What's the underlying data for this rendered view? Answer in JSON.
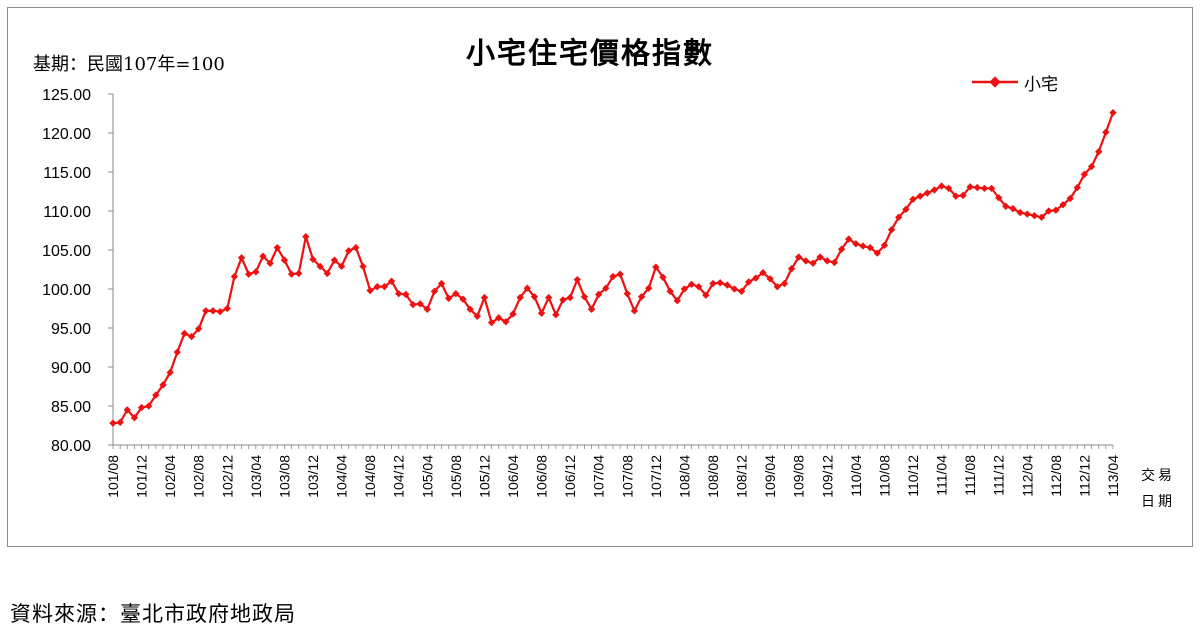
{
  "page": {
    "title": "小宅住宅價格指數",
    "base_note": "基期：民國107年=100",
    "source_note": "資料來源：臺北市政府地政局",
    "x_unit_line1": "交易",
    "x_unit_line2": "日期"
  },
  "colors": {
    "series": "#ee1111",
    "axis": "#888888",
    "frame": "#8c8c8c"
  },
  "chart_data": {
    "type": "line",
    "title": "小宅住宅價格指數",
    "xlabel": "交易日期",
    "ylabel": "",
    "ylim": [
      80,
      125
    ],
    "yticks": [
      80,
      85,
      90,
      95,
      100,
      105,
      110,
      115,
      120,
      125
    ],
    "ytick_labels": [
      "80.00",
      "85.00",
      "90.00",
      "95.00",
      "100.00",
      "105.00",
      "110.00",
      "115.00",
      "120.00",
      "125.00"
    ],
    "grid": false,
    "legend": "top-right",
    "xtick_labels": [
      "101/08",
      "101/12",
      "102/04",
      "102/08",
      "102/12",
      "103/04",
      "103/08",
      "103/12",
      "104/04",
      "104/08",
      "104/12",
      "105/04",
      "105/08",
      "105/12",
      "106/04",
      "106/08",
      "106/12",
      "107/04",
      "107/08",
      "107/12",
      "108/04",
      "108/08",
      "108/12",
      "109/04",
      "109/08",
      "109/12",
      "110/04",
      "110/08",
      "110/12",
      "111/04",
      "111/08",
      "111/12",
      "112/04",
      "112/08",
      "112/12",
      "113/04"
    ],
    "x_start": "101/08",
    "series": [
      {
        "name": "小宅",
        "values": [
          82.8,
          82.9,
          84.5,
          83.5,
          84.8,
          85.0,
          86.4,
          87.7,
          89.3,
          91.9,
          94.3,
          93.9,
          94.9,
          97.2,
          97.2,
          97.1,
          97.5,
          101.6,
          104.0,
          101.9,
          102.2,
          104.2,
          103.3,
          105.3,
          103.7,
          101.9,
          102.0,
          106.7,
          103.8,
          102.9,
          102.0,
          103.7,
          102.9,
          104.9,
          105.3,
          102.9,
          99.8,
          100.3,
          100.3,
          101.0,
          99.4,
          99.3,
          98.0,
          98.1,
          97.4,
          99.7,
          100.7,
          98.8,
          99.4,
          98.7,
          97.4,
          96.5,
          98.9,
          95.7,
          96.3,
          95.8,
          96.8,
          98.9,
          100.1,
          99.0,
          96.9,
          98.9,
          96.7,
          98.6,
          98.9,
          101.2,
          99.0,
          97.4,
          99.3,
          100.1,
          101.6,
          101.9,
          99.4,
          97.2,
          99.0,
          100.1,
          102.8,
          101.5,
          99.7,
          98.5,
          100.0,
          100.6,
          100.3,
          99.2,
          100.7,
          100.8,
          100.5,
          100.0,
          99.7,
          100.9,
          101.4,
          102.1,
          101.3,
          100.3,
          100.7,
          102.6,
          104.1,
          103.6,
          103.3,
          104.1,
          103.6,
          103.4,
          105.1,
          106.4,
          105.8,
          105.5,
          105.3,
          104.6,
          105.6,
          107.6,
          109.2,
          110.2,
          111.5,
          111.9,
          112.3,
          112.7,
          113.2,
          112.9,
          111.9,
          112.0,
          113.1,
          113.0,
          112.9,
          112.9,
          111.7,
          110.6,
          110.3,
          109.8,
          109.6,
          109.4,
          109.2,
          110.0,
          110.1,
          110.8,
          111.6,
          113.0,
          114.7,
          115.7,
          117.6,
          120.1,
          122.6
        ]
      }
    ]
  }
}
